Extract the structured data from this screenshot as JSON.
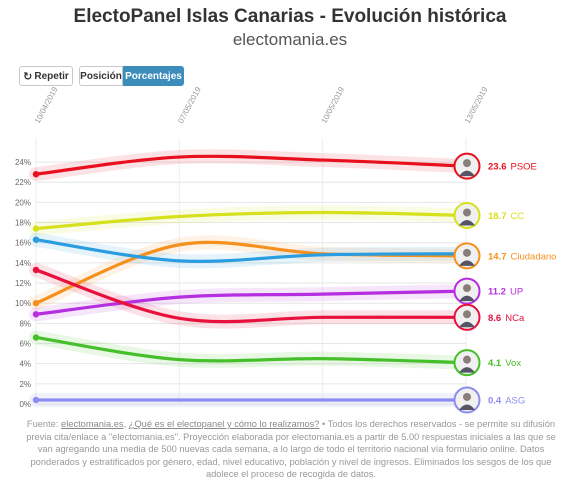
{
  "header": {
    "title": "ElectoPanel Islas Canarias - Evolución histórica",
    "subtitle": "electomania.es"
  },
  "controls": {
    "repeat_label": "Repetir",
    "position_label": "Posición",
    "percent_label": "Porcentajes"
  },
  "footer": {
    "source_prefix": "Fuente:",
    "source_link": "electomania.es",
    "sep1": ",",
    "question_link": "¿Qué es el electopanel y cómo lo realizamos?",
    "body_text": "• Todos los derechos reservados - se permite su difusión previa cita/enlace a \"electomania.es\". Proyección elaborada por electomania.es a partir de 5.00 respuestas iniciales a las que se van agregando una media de 500 nuevas cada semana, a lo largo de todo el territorio nacional vía formulario online. Datos ponderados y estratificados por género, edad, nivel educativo, población y nivel de ingresos. Eliminados los sesgos de los que adolece el proceso de recogida de datos."
  },
  "chart_data": {
    "type": "line",
    "x": [
      "10/04/2019",
      "07/05/2019",
      "10/05/2019",
      "13/05/2019"
    ],
    "ylim": [
      0,
      25
    ],
    "yticks": [
      "0%",
      "2%",
      "4%",
      "6%",
      "8%",
      "10%",
      "12%",
      "14%",
      "16%",
      "18%",
      "20%",
      "22%",
      "24%"
    ],
    "grid": true,
    "series": [
      {
        "name": "PSOE",
        "label": "23.6",
        "color": "#e8101e",
        "values": [
          22.8,
          24.5,
          24.2,
          23.6
        ]
      },
      {
        "name": "CC",
        "label": "18.7",
        "color": "#d6e01c",
        "values": [
          17.4,
          18.6,
          19.0,
          18.7
        ]
      },
      {
        "name": "Ciudadano",
        "label": "14.7",
        "color": "#f5901e",
        "values": [
          10.0,
          15.8,
          14.9,
          14.7
        ]
      },
      {
        "name": "",
        "label": "",
        "color": "#2a9ce0",
        "values": [
          16.3,
          14.2,
          14.8,
          14.9
        ]
      },
      {
        "name": "UP",
        "label": "11.2",
        "color": "#b52ee0",
        "values": [
          8.9,
          10.6,
          10.9,
          11.2
        ]
      },
      {
        "name": "NCa",
        "label": "8.6",
        "color": "#e8103c",
        "values": [
          13.3,
          8.5,
          8.6,
          8.6
        ]
      },
      {
        "name": "Vox",
        "label": "4.1",
        "color": "#46c02a",
        "values": [
          6.6,
          4.4,
          4.5,
          4.1
        ]
      },
      {
        "name": "ASG",
        "label": "0.4",
        "color": "#8c8cf0",
        "values": [
          0.4,
          0.4,
          0.4,
          0.4
        ]
      }
    ]
  }
}
